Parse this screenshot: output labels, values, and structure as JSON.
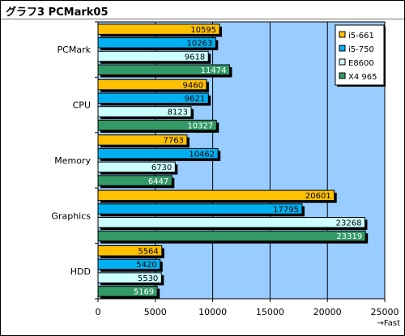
{
  "chart_data": {
    "type": "bar",
    "orientation": "horizontal",
    "title": "グラフ3 PCMark05",
    "categories": [
      "PCMark",
      "CPU",
      "Memory",
      "Graphics",
      "HDD"
    ],
    "series": [
      {
        "name": "i5-661",
        "color": "#ffc000",
        "values": [
          10595,
          9460,
          7763,
          20601,
          5564
        ]
      },
      {
        "name": "i5-750",
        "color": "#00b0f0",
        "values": [
          10263,
          9621,
          10462,
          17795,
          5420
        ]
      },
      {
        "name": "E8600",
        "color": "#ccffff",
        "values": [
          9618,
          8123,
          6730,
          23268,
          5530
        ]
      },
      {
        "name": "X4 965",
        "color": "#339966",
        "values": [
          11474,
          10327,
          6447,
          23319,
          5169
        ]
      }
    ],
    "x_ticks": [
      "0",
      "5000",
      "10000",
      "15000",
      "20000",
      "25000"
    ],
    "xlim": [
      0,
      25000
    ],
    "x_direction_label": "→Fast",
    "plot_background": "#99ccff",
    "grid": true,
    "legend_position": "top-right"
  }
}
